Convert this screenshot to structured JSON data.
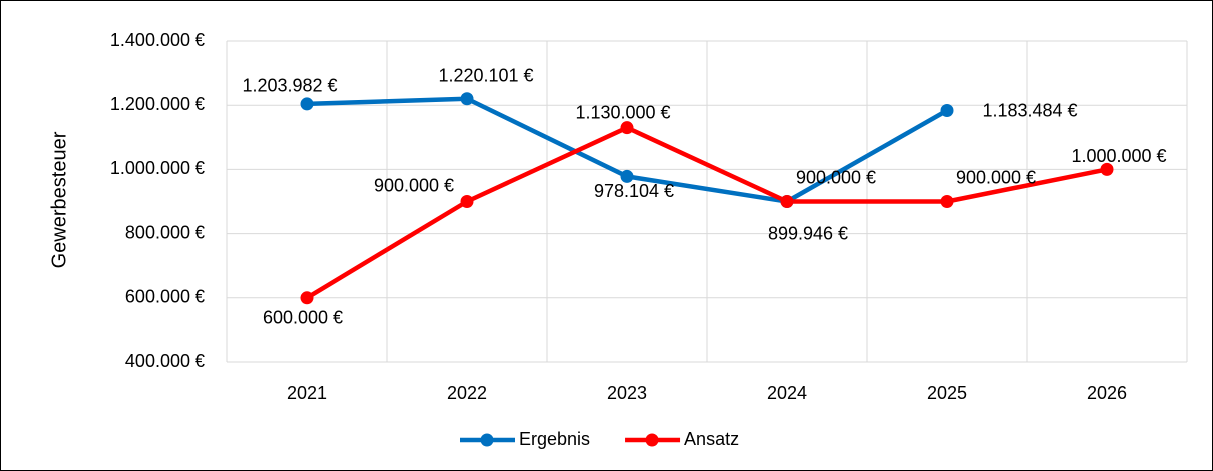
{
  "chart_data": {
    "type": "line",
    "y_label": "Gewerbesteuer",
    "categories": [
      "2021",
      "2022",
      "2023",
      "2024",
      "2025",
      "2026"
    ],
    "series": [
      {
        "name": "Ergebnis",
        "color": "#0070c0",
        "values": [
          1203982,
          1220101,
          978104,
          899946,
          1183484,
          null
        ],
        "value_labels": [
          "1.203.982 €",
          "1.220.101 €",
          "978.104 €",
          "899.946 €",
          "1.183.484 €",
          null
        ]
      },
      {
        "name": "Ansatz",
        "color": "#ff0000",
        "values": [
          600000,
          900000,
          1130000,
          900000,
          900000,
          1000000
        ],
        "value_labels": [
          "600.000 €",
          "900.000 €",
          "1.130.000 €",
          "900.000 €",
          "900.000 €",
          "1.000.000 €"
        ]
      }
    ],
    "ylim": [
      400000,
      1400000
    ],
    "yticks": [
      {
        "value": 400000,
        "label": "400.000 €"
      },
      {
        "value": 600000,
        "label": "600.000 €"
      },
      {
        "value": 800000,
        "label": "800.000 €"
      },
      {
        "value": 1000000,
        "label": "1.000.000 €"
      },
      {
        "value": 1200000,
        "label": "1.200.000 €"
      },
      {
        "value": 1400000,
        "label": "1.400.000 €"
      }
    ],
    "grid": true,
    "legend": "bottom"
  }
}
